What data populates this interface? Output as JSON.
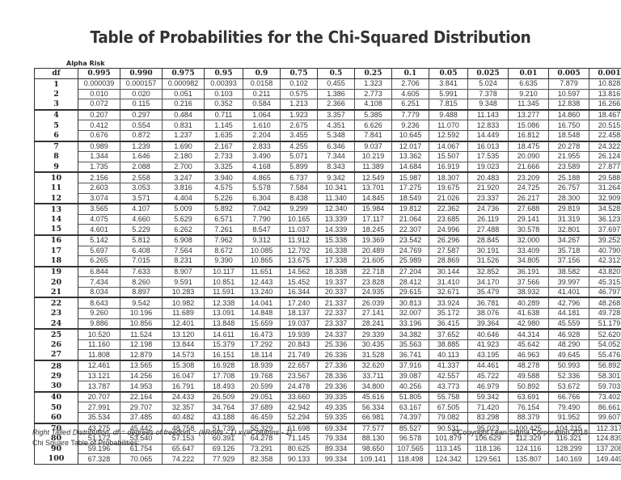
{
  "title": "Table of Probabilities for the Chi-Squared Distribution",
  "alpha_label": "Alpha Risk",
  "table": {
    "df_header": "df",
    "alphas": [
      "0.995",
      "0.990",
      "0.975",
      "0.95",
      "0.9",
      "0.75",
      "0.5",
      "0.25",
      "0.1",
      "0.05",
      "0.025",
      "0.01",
      "0.005",
      "0.001"
    ],
    "rows": [
      {
        "df": "1",
        "v": [
          "0.000039",
          "0.000157",
          "0.000982",
          "0.00393",
          "0.0158",
          "0.102",
          "0.455",
          "1.323",
          "2.706",
          "3.841",
          "5.024",
          "6.635",
          "7.879",
          "10.828"
        ]
      },
      {
        "df": "2",
        "v": [
          "0.010",
          "0.020",
          "0.051",
          "0.103",
          "0.211",
          "0.575",
          "1.386",
          "2.773",
          "4.605",
          "5.991",
          "7.378",
          "9.210",
          "10.597",
          "13.816"
        ]
      },
      {
        "df": "3",
        "v": [
          "0.072",
          "0.115",
          "0.216",
          "0.352",
          "0.584",
          "1.213",
          "2.366",
          "4.108",
          "6.251",
          "7.815",
          "9.348",
          "11.345",
          "12.838",
          "16.266"
        ]
      },
      {
        "df": "4",
        "v": [
          "0.207",
          "0.297",
          "0.484",
          "0.711",
          "1.064",
          "1.923",
          "3.357",
          "5.385",
          "7.779",
          "9.488",
          "11.143",
          "13.277",
          "14.860",
          "18.467"
        ]
      },
      {
        "df": "5",
        "v": [
          "0.412",
          "0.554",
          "0.831",
          "1.145",
          "1.610",
          "2.675",
          "4.351",
          "6.626",
          "9.236",
          "11.070",
          "12.833",
          "15.086",
          "16.750",
          "20.515"
        ]
      },
      {
        "df": "6",
        "v": [
          "0.676",
          "0.872",
          "1.237",
          "1.635",
          "2.204",
          "3.455",
          "5.348",
          "7.841",
          "10.645",
          "12.592",
          "14.449",
          "16.812",
          "18.548",
          "22.458"
        ]
      },
      {
        "df": "7",
        "v": [
          "0.989",
          "1.239",
          "1.690",
          "2.167",
          "2.833",
          "4.255",
          "6.346",
          "9.037",
          "12.017",
          "14.067",
          "16.013",
          "18.475",
          "20.278",
          "24.322"
        ]
      },
      {
        "df": "8",
        "v": [
          "1.344",
          "1.646",
          "2.180",
          "2.733",
          "3.490",
          "5.071",
          "7.344",
          "10.219",
          "13.362",
          "15.507",
          "17.535",
          "20.090",
          "21.955",
          "26.124"
        ]
      },
      {
        "df": "9",
        "v": [
          "1.735",
          "2.088",
          "2.700",
          "3.325",
          "4.168",
          "5.899",
          "8.343",
          "11.389",
          "14.684",
          "16.919",
          "19.023",
          "21.666",
          "23.589",
          "27.877"
        ]
      },
      {
        "df": "10",
        "v": [
          "2.156",
          "2.558",
          "3.247",
          "3.940",
          "4.865",
          "6.737",
          "9.342",
          "12.549",
          "15.987",
          "18.307",
          "20.483",
          "23.209",
          "25.188",
          "29.588"
        ]
      },
      {
        "df": "11",
        "v": [
          "2.603",
          "3.053",
          "3.816",
          "4.575",
          "5.578",
          "7.584",
          "10.341",
          "13.701",
          "17.275",
          "19.675",
          "21.920",
          "24.725",
          "26.757",
          "31.264"
        ]
      },
      {
        "df": "12",
        "v": [
          "3.074",
          "3.571",
          "4.404",
          "5.226",
          "6.304",
          "8.438",
          "11.340",
          "14.845",
          "18.549",
          "21.026",
          "23.337",
          "26.217",
          "28.300",
          "32.909"
        ]
      },
      {
        "df": "13",
        "v": [
          "3.565",
          "4.107",
          "5.009",
          "5.892",
          "7.042",
          "9.299",
          "12.340",
          "15.984",
          "19.812",
          "22.362",
          "24.736",
          "27.688",
          "29.819",
          "34.528"
        ]
      },
      {
        "df": "14",
        "v": [
          "4.075",
          "4.660",
          "5.629",
          "6.571",
          "7.790",
          "10.165",
          "13.339",
          "17.117",
          "21.064",
          "23.685",
          "26.119",
          "29.141",
          "31.319",
          "36.123"
        ]
      },
      {
        "df": "15",
        "v": [
          "4.601",
          "5.229",
          "6.262",
          "7.261",
          "8.547",
          "11.037",
          "14.339",
          "18.245",
          "22.307",
          "24.996",
          "27.488",
          "30.578",
          "32.801",
          "37.697"
        ]
      },
      {
        "df": "16",
        "v": [
          "5.142",
          "5.812",
          "6.908",
          "7.962",
          "9.312",
          "11.912",
          "15.338",
          "19.369",
          "23.542",
          "26.296",
          "28.845",
          "32.000",
          "34.267",
          "39.252"
        ]
      },
      {
        "df": "17",
        "v": [
          "5.697",
          "6.408",
          "7.564",
          "8.672",
          "10.085",
          "12.792",
          "16.338",
          "20.489",
          "24.769",
          "27.587",
          "30.191",
          "33.409",
          "35.718",
          "40.790"
        ]
      },
      {
        "df": "18",
        "v": [
          "6.265",
          "7.015",
          "8.231",
          "9.390",
          "10.865",
          "13.675",
          "17.338",
          "21.605",
          "25.989",
          "28.869",
          "31.526",
          "34.805",
          "37.156",
          "42.312"
        ]
      },
      {
        "df": "19",
        "v": [
          "6.844",
          "7.633",
          "8.907",
          "10.117",
          "11.651",
          "14.562",
          "18.338",
          "22.718",
          "27.204",
          "30.144",
          "32.852",
          "36.191",
          "38.582",
          "43.820"
        ]
      },
      {
        "df": "20",
        "v": [
          "7.434",
          "8.260",
          "9.591",
          "10.851",
          "12.443",
          "15.452",
          "19.337",
          "23.828",
          "28.412",
          "31.410",
          "34.170",
          "37.566",
          "39.997",
          "45.315"
        ]
      },
      {
        "df": "21",
        "v": [
          "8.034",
          "8.897",
          "10.283",
          "11.591",
          "13.240",
          "16.344",
          "20.337",
          "24.935",
          "29.615",
          "32.671",
          "35.479",
          "38.932",
          "41.401",
          "46.797"
        ]
      },
      {
        "df": "22",
        "v": [
          "8.643",
          "9.542",
          "10.982",
          "12.338",
          "14.041",
          "17.240",
          "21.337",
          "26.039",
          "30.813",
          "33.924",
          "36.781",
          "40.289",
          "42.796",
          "48.268"
        ]
      },
      {
        "df": "23",
        "v": [
          "9.260",
          "10.196",
          "11.689",
          "13.091",
          "14.848",
          "18.137",
          "22.337",
          "27.141",
          "32.007",
          "35.172",
          "38.076",
          "41.638",
          "44.181",
          "49.728"
        ]
      },
      {
        "df": "24",
        "v": [
          "9.886",
          "10.856",
          "12.401",
          "13.848",
          "15.659",
          "19.037",
          "23.337",
          "28.241",
          "33.196",
          "36.415",
          "39.364",
          "42.980",
          "45.559",
          "51.179"
        ]
      },
      {
        "df": "25",
        "v": [
          "10.520",
          "11.524",
          "13.120",
          "14.611",
          "16.473",
          "19.939",
          "24.337",
          "29.339",
          "34.382",
          "37.652",
          "40.646",
          "44.314",
          "46.928",
          "52.620"
        ]
      },
      {
        "df": "26",
        "v": [
          "11.160",
          "12.198",
          "13.844",
          "15.379",
          "17.292",
          "20.843",
          "25.336",
          "30.435",
          "35.563",
          "38.885",
          "41.923",
          "45.642",
          "48.290",
          "54.052"
        ]
      },
      {
        "df": "27",
        "v": [
          "11.808",
          "12.879",
          "14.573",
          "16.151",
          "18.114",
          "21.749",
          "26.336",
          "31.528",
          "36.741",
          "40.113",
          "43.195",
          "46.963",
          "49.645",
          "55.476"
        ]
      },
      {
        "df": "28",
        "v": [
          "12.461",
          "13.565",
          "15.308",
          "16.928",
          "18.939",
          "22.657",
          "27.336",
          "32.620",
          "37.916",
          "41.337",
          "44.461",
          "48.278",
          "50.993",
          "56.892"
        ]
      },
      {
        "df": "29",
        "v": [
          "13.121",
          "14.256",
          "16.047",
          "17.708",
          "19.768",
          "23.567",
          "28.336",
          "33.711",
          "39.087",
          "42.557",
          "45.722",
          "49.588",
          "52.336",
          "58.301"
        ]
      },
      {
        "df": "30",
        "v": [
          "13.787",
          "14.953",
          "16.791",
          "18.493",
          "20.599",
          "24.478",
          "29.336",
          "34.800",
          "40.256",
          "43.773",
          "46.979",
          "50.892",
          "53.672",
          "59.703"
        ]
      },
      {
        "df": "40",
        "v": [
          "20.707",
          "22.164",
          "24.433",
          "26.509",
          "29.051",
          "33.660",
          "39.335",
          "45.616",
          "51.805",
          "55.758",
          "59.342",
          "63.691",
          "66.766",
          "73.402"
        ]
      },
      {
        "df": "50",
        "v": [
          "27.991",
          "29.707",
          "32.357",
          "34.764",
          "37.689",
          "42.942",
          "49.335",
          "56.334",
          "63.167",
          "67.505",
          "71.420",
          "76.154",
          "79.490",
          "86.661"
        ]
      },
      {
        "df": "60",
        "v": [
          "35.534",
          "37.485",
          "40.482",
          "43.188",
          "46.459",
          "52.294",
          "59.335",
          "66.981",
          "74.397",
          "79.082",
          "83.298",
          "88.379",
          "91.952",
          "99.607"
        ]
      },
      {
        "df": "70",
        "v": [
          "43.275",
          "45.442",
          "48.758",
          "51.739",
          "55.329",
          "61.698",
          "69.334",
          "77.577",
          "85.527",
          "90.531",
          "95.023",
          "100.425",
          "104.215",
          "112.317"
        ]
      },
      {
        "df": "80",
        "v": [
          "51.172",
          "53.540",
          "57.153",
          "60.391",
          "64.278",
          "71.145",
          "79.334",
          "88.130",
          "96.578",
          "101.879",
          "106.629",
          "112.329",
          "116.321",
          "124.839"
        ]
      },
      {
        "df": "90",
        "v": [
          "59.196",
          "61.754",
          "65.647",
          "69.126",
          "73.291",
          "80.625",
          "89.334",
          "98.650",
          "107.565",
          "113.145",
          "118.136",
          "124.116",
          "128.299",
          "137.208"
        ]
      },
      {
        "df": "100",
        "v": [
          "67.328",
          "70.065",
          "74.222",
          "77.929",
          "82.358",
          "90.133",
          "99.334",
          "109.141",
          "118.498",
          "124.342",
          "129.561",
          "135.807",
          "140.169",
          "149.449"
        ]
      }
    ],
    "group_starts": [
      "4",
      "7",
      "10",
      "13",
      "16",
      "19",
      "22",
      "25",
      "28",
      "40",
      "70"
    ]
  },
  "footer": {
    "note": "Right Tailed Distribution, df = degrees of freedom = (#Rows - 1) x (#Columns - 1)",
    "copyright": "©Copyright Lean Sigma Corporation 2018",
    "caption": "Chi Square Table of Probabilities:"
  }
}
